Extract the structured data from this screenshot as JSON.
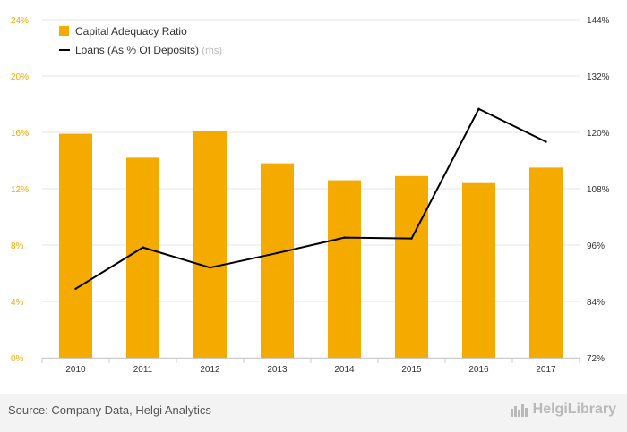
{
  "chart_data": {
    "type": "bar+line",
    "categories": [
      "2010",
      "2011",
      "2012",
      "2013",
      "2014",
      "2015",
      "2016",
      "2017"
    ],
    "series": [
      {
        "name": "Capital Adequacy Ratio",
        "kind": "bar",
        "axis": "left",
        "color": "#f5aa00",
        "values": [
          15.9,
          14.2,
          16.1,
          13.8,
          12.6,
          12.9,
          12.4,
          13.5
        ]
      },
      {
        "name": "Loans (As % Of Deposits)",
        "legend_suffix": "(rhs)",
        "kind": "line",
        "axis": "right",
        "color": "#000000",
        "values": [
          86.7,
          95.5,
          91.2,
          94.3,
          97.6,
          97.4,
          125.0,
          118.0
        ]
      }
    ],
    "y_left": {
      "ticks": [
        0,
        4,
        8,
        12,
        16,
        20,
        24
      ],
      "tick_labels": [
        "0%",
        "4%",
        "8%",
        "12%",
        "16%",
        "20%",
        "24%"
      ],
      "ylim": [
        0,
        24
      ],
      "color": "#f5aa00"
    },
    "y_right": {
      "ticks": [
        72,
        84,
        96,
        108,
        120,
        132,
        144
      ],
      "tick_labels": [
        "72%",
        "84%",
        "96%",
        "108%",
        "120%",
        "132%",
        "144%"
      ],
      "ylim": [
        72,
        144
      ],
      "color": "#333333"
    },
    "grid": true,
    "legend_position": "top-left"
  },
  "footer": {
    "source": "Source: Company Data, Helgi Analytics",
    "brand": "HelgiLibrary"
  }
}
